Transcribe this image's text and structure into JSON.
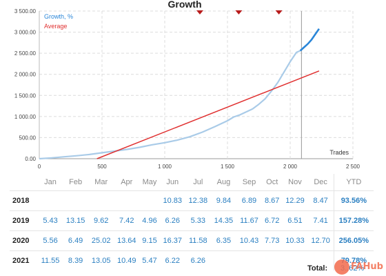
{
  "chart_data": {
    "type": "line",
    "title": "Growth",
    "xlabel": "Trades",
    "xlim": [
      0,
      2500
    ],
    "ylim": [
      0,
      3500
    ],
    "x_ticks": [
      "0",
      "500",
      "1 000",
      "1 500",
      "2 000",
      "2 500"
    ],
    "y_ticks": [
      "0.00",
      "500.00",
      "1 000.00",
      "1 500.00",
      "2 000.00",
      "2 500.00",
      "3 000.00",
      "3 500.00"
    ],
    "legend_placement": "top-left",
    "grid": true,
    "series": [
      {
        "name": "Growth, %",
        "color": "#a9cbe8",
        "x": [
          0,
          100,
          200,
          300,
          400,
          500,
          600,
          700,
          800,
          900,
          1000,
          1100,
          1200,
          1300,
          1400,
          1500,
          1550,
          1600,
          1700,
          1750,
          1800,
          1850,
          1900,
          1950,
          2000,
          2050,
          2080
        ],
        "y": [
          0,
          20,
          45,
          70,
          100,
          140,
          180,
          220,
          270,
          330,
          380,
          440,
          520,
          630,
          760,
          900,
          990,
          1040,
          1180,
          1290,
          1420,
          1600,
          1800,
          2050,
          2300,
          2520,
          2560
        ]
      },
      {
        "name": "Growth, %",
        "color": "#2a86d8",
        "x": [
          2080,
          2110,
          2140,
          2170,
          2200,
          2230
        ],
        "y": [
          2560,
          2640,
          2720,
          2820,
          2950,
          3080
        ]
      },
      {
        "name": "Average",
        "color": "#e03030",
        "x": [
          460,
          2230
        ],
        "y": [
          0,
          2080
        ]
      }
    ],
    "marker_line_x": 2090,
    "markers_x": [
      1280,
      1590,
      1910
    ]
  },
  "table": {
    "headers": [
      "Jan",
      "Feb",
      "Mar",
      "Apr",
      "May",
      "Jun",
      "Jul",
      "Aug",
      "Sep",
      "Oct",
      "Nov",
      "Dec",
      "YTD"
    ],
    "rows": [
      {
        "year": "2018",
        "values": [
          "",
          "",
          "",
          "",
          "",
          "10.83",
          "12.38",
          "9.84",
          "6.89",
          "8.67",
          "12.29",
          "8.47"
        ],
        "ytd": "93.56%"
      },
      {
        "year": "2019",
        "values": [
          "5.43",
          "13.15",
          "9.62",
          "7.42",
          "4.96",
          "6.26",
          "5.33",
          "14.35",
          "11.67",
          "6.72",
          "6.51",
          "7.41"
        ],
        "ytd": "157.28%"
      },
      {
        "year": "2020",
        "values": [
          "5.56",
          "6.49",
          "25.02",
          "13.64",
          "9.15",
          "16.37",
          "11.58",
          "6.35",
          "10.43",
          "7.73",
          "10.33",
          "12.70"
        ],
        "ytd": "256.05%"
      },
      {
        "year": "2021",
        "values": [
          "11.55",
          "8.39",
          "13.05",
          "10.49",
          "5.47",
          "6.22",
          "6.26",
          "",
          "",
          "",
          "",
          ""
        ],
        "ytd": "79.78%"
      }
    ]
  },
  "total": {
    "label": "Total:",
    "value": "3..62%"
  },
  "watermark": {
    "text": "FAHub",
    "icon": "fahub-logo-icon"
  }
}
